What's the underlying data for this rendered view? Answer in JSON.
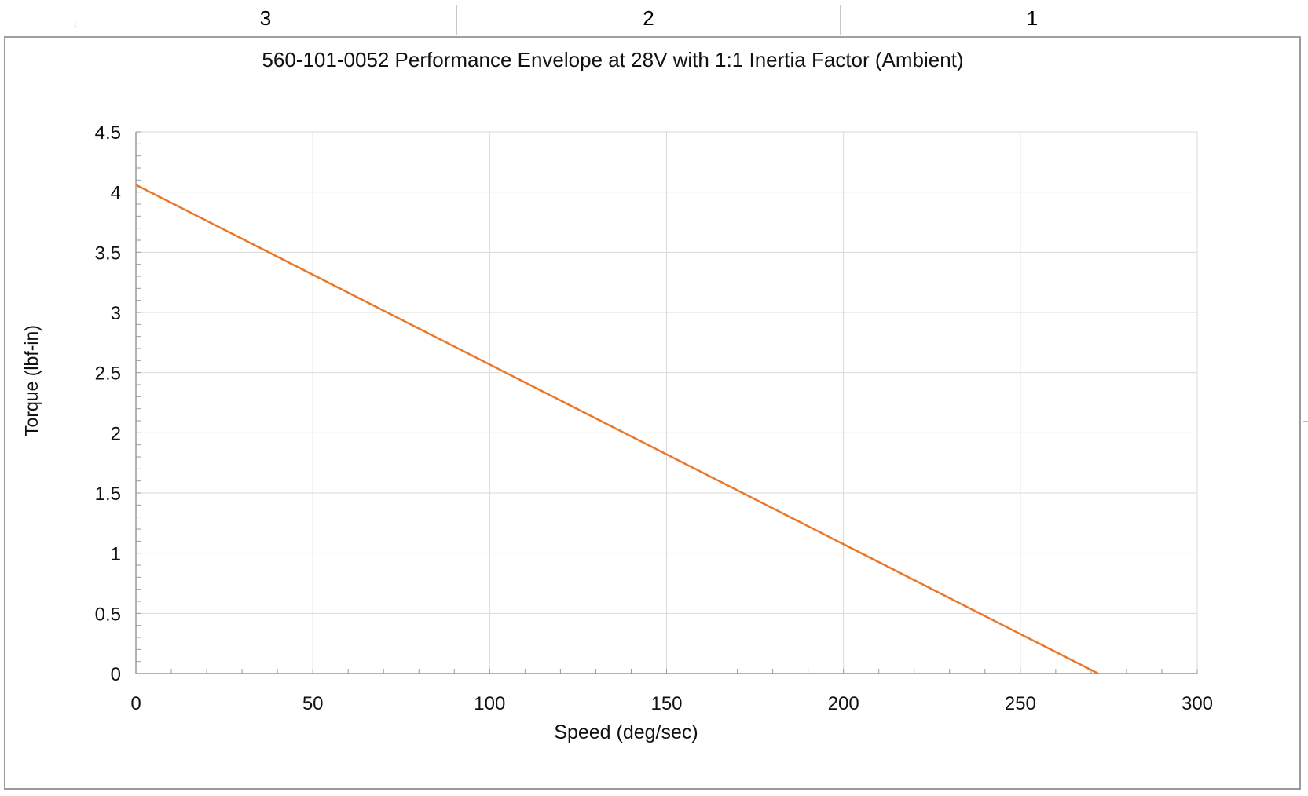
{
  "ruler": {
    "columns": [
      "3",
      "2",
      "1"
    ]
  },
  "chart_data": {
    "type": "line",
    "title": "560-101-0052 Performance Envelope at 28V with 1:1 Inertia Factor (Ambient)",
    "xlabel": "Speed (deg/sec)",
    "ylabel": "Torque (lbf-in)",
    "xlim": [
      0,
      300
    ],
    "ylim": [
      0,
      4.5
    ],
    "xticks": [
      "0",
      "50",
      "100",
      "150",
      "200",
      "250",
      "300"
    ],
    "yticks": [
      "0",
      "0.5",
      "1",
      "1.5",
      "2",
      "2.5",
      "3",
      "3.5",
      "4",
      "4.5"
    ],
    "grid": true,
    "series": [
      {
        "x": [
          0,
          272
        ],
        "y": [
          4.06,
          0
        ]
      }
    ],
    "colors": {
      "line": "#e8782a",
      "grid": "#d9d9d9",
      "axis": "#9a9a9a"
    }
  }
}
